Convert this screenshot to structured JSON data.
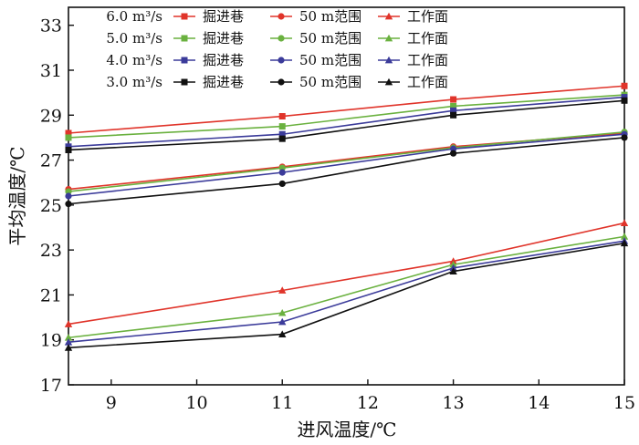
{
  "chart_data": {
    "type": "line",
    "title": "",
    "xlabel": "进风温度/℃",
    "ylabel": "平均温度/℃",
    "xlim": [
      8.5,
      15
    ],
    "ylim": [
      17,
      33.8
    ],
    "xticks": [
      9,
      10,
      11,
      12,
      13,
      14,
      15
    ],
    "yticks": [
      17,
      19,
      21,
      23,
      25,
      27,
      29,
      31,
      33
    ],
    "grid": false,
    "legend_position": "top-left",
    "x": [
      8.5,
      11,
      13,
      15
    ],
    "legend_rows": [
      {
        "label": "6.0 m³/s",
        "color": "#e0342a"
      },
      {
        "label": "5.0 m³/s",
        "color": "#6ab13f"
      },
      {
        "label": "4.0 m³/s",
        "color": "#3b3b9a"
      },
      {
        "label": "3.0 m³/s",
        "color": "#111111"
      }
    ],
    "legend_columns": [
      {
        "label": "掘进巷",
        "marker": "square"
      },
      {
        "label": "50 m范围",
        "marker": "circle"
      },
      {
        "label": "工作面",
        "marker": "triangle"
      }
    ],
    "series": [
      {
        "name": "掘进巷",
        "flow": "6.0 m³/s",
        "color": "#e0342a",
        "marker": "square",
        "values": [
          28.2,
          28.95,
          29.7,
          30.3
        ]
      },
      {
        "name": "掘进巷",
        "flow": "5.0 m³/s",
        "color": "#6ab13f",
        "marker": "square",
        "values": [
          28.0,
          28.5,
          29.4,
          29.9
        ]
      },
      {
        "name": "掘进巷",
        "flow": "4.0 m³/s",
        "color": "#3b3b9a",
        "marker": "square",
        "values": [
          27.6,
          28.15,
          29.2,
          29.8
        ]
      },
      {
        "name": "掘进巷",
        "flow": "3.0 m³/s",
        "color": "#111111",
        "marker": "square",
        "values": [
          27.45,
          27.95,
          29.0,
          29.65
        ]
      },
      {
        "name": "50 m范围",
        "flow": "6.0 m³/s",
        "color": "#e0342a",
        "marker": "circle",
        "values": [
          25.7,
          26.7,
          27.6,
          28.2
        ]
      },
      {
        "name": "50 m范围",
        "flow": "5.0 m³/s",
        "color": "#6ab13f",
        "marker": "circle",
        "values": [
          25.6,
          26.65,
          27.55,
          28.25
        ]
      },
      {
        "name": "50 m范围",
        "flow": "4.0 m³/s",
        "color": "#3b3b9a",
        "marker": "circle",
        "values": [
          25.4,
          26.45,
          27.5,
          28.15
        ]
      },
      {
        "name": "50 m范围",
        "flow": "3.0 m³/s",
        "color": "#111111",
        "marker": "circle",
        "values": [
          25.05,
          25.95,
          27.3,
          28.0
        ]
      },
      {
        "name": "工作面",
        "flow": "6.0 m³/s",
        "color": "#e0342a",
        "marker": "triangle",
        "values": [
          19.7,
          21.2,
          22.5,
          24.2
        ]
      },
      {
        "name": "工作面",
        "flow": "5.0 m³/s",
        "color": "#6ab13f",
        "marker": "triangle",
        "values": [
          19.1,
          20.2,
          22.35,
          23.6
        ]
      },
      {
        "name": "工作面",
        "flow": "4.0 m³/s",
        "color": "#3b3b9a",
        "marker": "triangle",
        "values": [
          18.9,
          19.8,
          22.2,
          23.4
        ]
      },
      {
        "name": "工作面",
        "flow": "3.0 m³/s",
        "color": "#111111",
        "marker": "triangle",
        "values": [
          18.65,
          19.25,
          22.05,
          23.3
        ]
      }
    ]
  }
}
